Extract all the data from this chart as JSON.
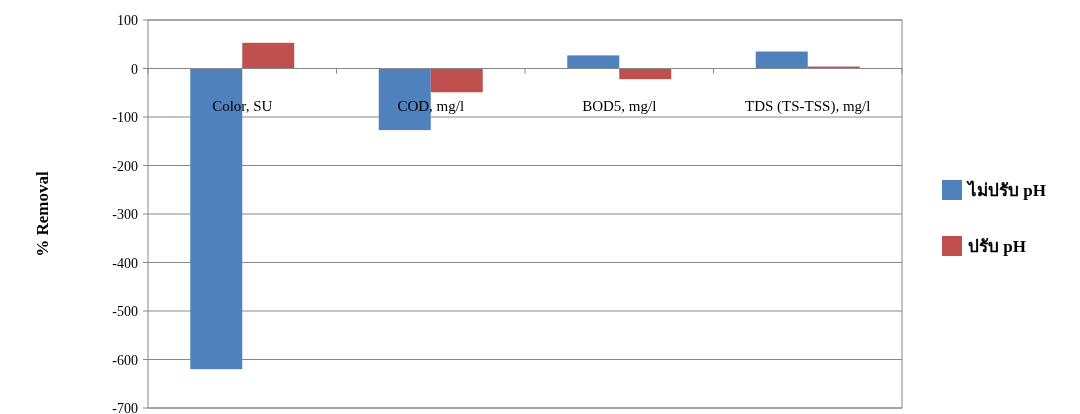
{
  "chart_data": {
    "type": "bar",
    "ylabel": "% Removal",
    "categories": [
      "Color, SU",
      "COD, mg/l",
      "BOD5, mg/l",
      "TDS (TS-TSS), mg/l"
    ],
    "series": [
      {
        "name": "ไม่ปรับ pH",
        "color": "#4f81bd",
        "values": [
          -620,
          -127,
          27,
          35
        ]
      },
      {
        "name": "ปรับ pH",
        "color": "#c0504d",
        "values": [
          53,
          -49,
          -22,
          4
        ]
      }
    ],
    "ylim": [
      -700,
      100
    ],
    "yticks": [
      -700,
      -600,
      -500,
      -400,
      -300,
      -200,
      -100,
      0,
      100
    ],
    "grid": "y",
    "legend": "right"
  }
}
